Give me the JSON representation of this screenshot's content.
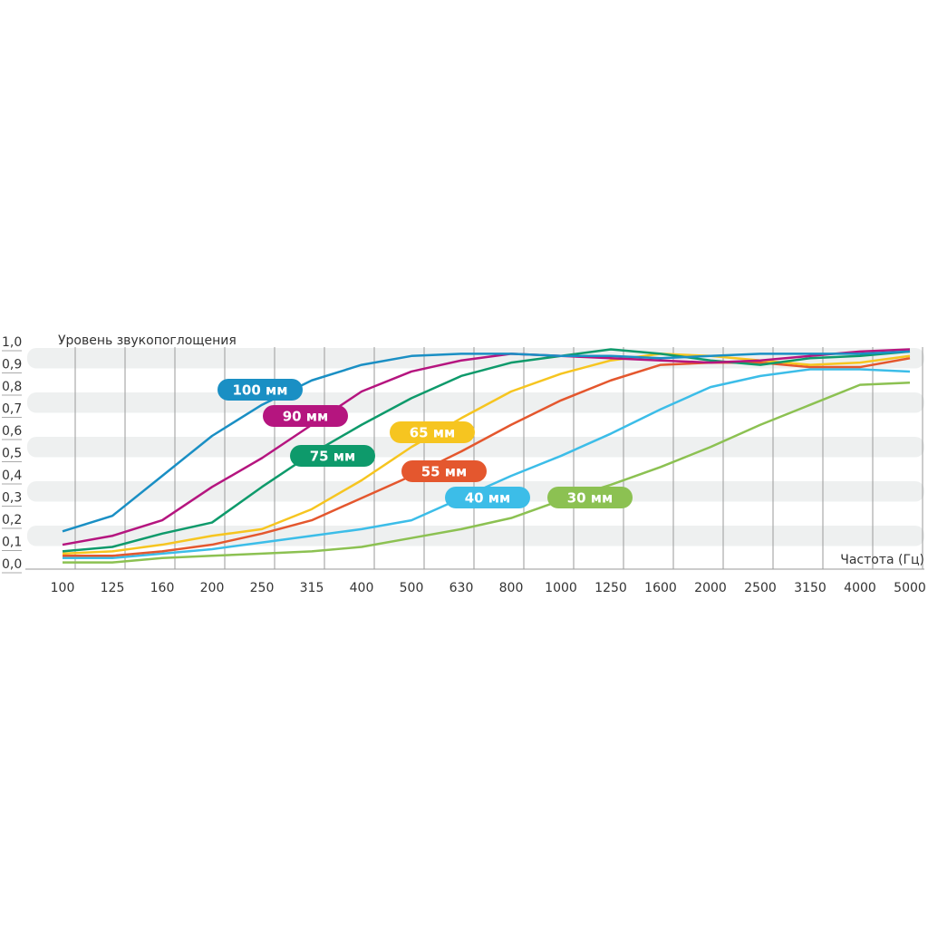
{
  "chart_data": {
    "type": "line",
    "y_label": "Уровень звукопоглощения",
    "x_label": "Частота (Гц)",
    "categories": [
      "100",
      "125",
      "160",
      "200",
      "250",
      "315",
      "400",
      "500",
      "630",
      "800",
      "1000",
      "1250",
      "1600",
      "2000",
      "2500",
      "3150",
      "4000",
      "5000"
    ],
    "ylim": [
      0,
      1
    ],
    "yticks": [
      {
        "value": 0,
        "label": "0,0"
      },
      {
        "value": 0.1,
        "label": "0,1"
      },
      {
        "value": 0.2,
        "label": "0,2"
      },
      {
        "value": 0.3,
        "label": "0,3"
      },
      {
        "value": 0.4,
        "label": "0,4"
      },
      {
        "value": 0.5,
        "label": "0,5"
      },
      {
        "value": 0.6,
        "label": "0,6"
      },
      {
        "value": 0.7,
        "label": "0,7"
      },
      {
        "value": 0.8,
        "label": "0,8"
      },
      {
        "value": 0.9,
        "label": "0,9"
      },
      {
        "value": 1,
        "label": "1,0"
      }
    ],
    "series": [
      {
        "name": "100 мм",
        "color": "#1a8fc4",
        "values": [
          0.17,
          0.24,
          0.42,
          0.6,
          0.74,
          0.85,
          0.92,
          0.96,
          0.97,
          0.97,
          0.96,
          0.96,
          0.95,
          0.96,
          0.97,
          0.97,
          0.97,
          0.98
        ]
      },
      {
        "name": "90 мм",
        "color": "#b5157f",
        "values": [
          0.11,
          0.15,
          0.22,
          0.37,
          0.5,
          0.65,
          0.8,
          0.89,
          0.94,
          0.97,
          0.96,
          0.95,
          0.94,
          0.93,
          0.94,
          0.96,
          0.98,
          0.99
        ]
      },
      {
        "name": "75 мм",
        "color": "#0e9a6b",
        "values": [
          0.08,
          0.1,
          0.16,
          0.21,
          0.37,
          0.52,
          0.65,
          0.77,
          0.87,
          0.93,
          0.96,
          0.99,
          0.97,
          0.94,
          0.92,
          0.95,
          0.96,
          0.98
        ]
      },
      {
        "name": "65 мм",
        "color": "#f6c520",
        "values": [
          0.07,
          0.08,
          0.11,
          0.15,
          0.18,
          0.27,
          0.4,
          0.55,
          0.68,
          0.8,
          0.88,
          0.94,
          0.97,
          0.96,
          0.94,
          0.92,
          0.93,
          0.96
        ]
      },
      {
        "name": "55 мм",
        "color": "#e4572e",
        "values": [
          0.06,
          0.06,
          0.08,
          0.11,
          0.16,
          0.22,
          0.32,
          0.42,
          0.53,
          0.65,
          0.76,
          0.85,
          0.92,
          0.93,
          0.93,
          0.91,
          0.91,
          0.95
        ]
      },
      {
        "name": "40 мм",
        "color": "#3cbde8",
        "values": [
          0.05,
          0.05,
          0.07,
          0.09,
          0.12,
          0.15,
          0.18,
          0.22,
          0.32,
          0.42,
          0.51,
          0.61,
          0.72,
          0.82,
          0.87,
          0.9,
          0.9,
          0.89
        ]
      },
      {
        "name": "30 мм",
        "color": "#8cc152",
        "values": [
          0.03,
          0.03,
          0.05,
          0.06,
          0.07,
          0.08,
          0.1,
          0.14,
          0.18,
          0.23,
          0.31,
          0.38,
          0.46,
          0.55,
          0.65,
          0.74,
          0.83,
          0.84
        ]
      }
    ]
  }
}
